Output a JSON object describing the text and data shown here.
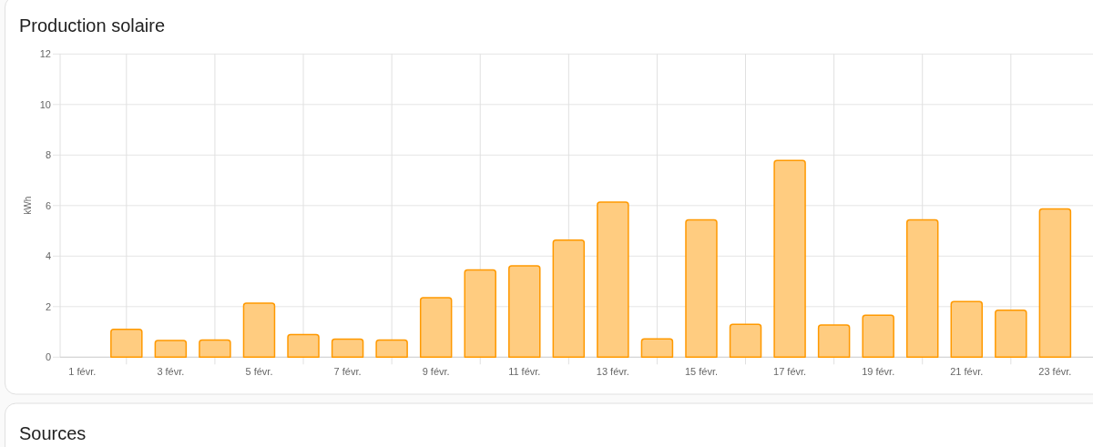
{
  "chart_data": [
    {
      "type": "bar",
      "title": "Production solaire",
      "ylabel": "kWh",
      "categories": [
        "1 févr.",
        null,
        "3 févr.",
        null,
        "5 févr.",
        null,
        "7 févr.",
        null,
        "9 févr.",
        null,
        "11 févr.",
        null,
        "13 févr.",
        null,
        "15 févr.",
        null,
        "17 févr.",
        null,
        "19 févr.",
        null,
        "21 févr.",
        null,
        "23 févr."
      ],
      "values": [
        null,
        1.1,
        0.66,
        0.68,
        2.14,
        0.89,
        0.71,
        0.68,
        2.35,
        3.45,
        3.61,
        4.63,
        6.14,
        0.72,
        5.43,
        1.3,
        7.79,
        1.27,
        1.66,
        5.43,
        2.2,
        1.86,
        5.87
      ],
      "color": "#ffcc80",
      "ylim": [
        0,
        12
      ],
      "yticks": [
        0,
        2,
        4,
        6,
        8,
        10,
        12
      ],
      "grid": true
    },
    {
      "type": "other",
      "title": "Sources"
    }
  ]
}
